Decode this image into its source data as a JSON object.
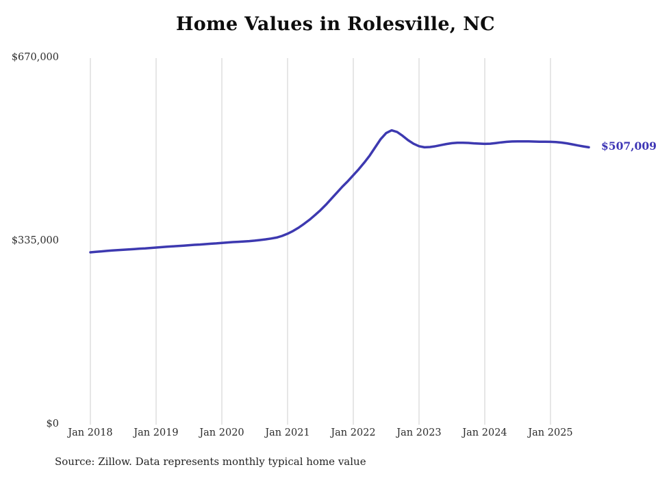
{
  "title": "Home Values in Rolesville, NC",
  "source_note": "Source: Zillow. Data represents monthly typical home value",
  "chart_data": {
    "type": "line",
    "title": "Home Values in Rolesville, NC",
    "xlabel": "",
    "ylabel": "",
    "ylim": [
      0,
      670000
    ],
    "grid": "vertical-only",
    "grid_color": "#cccccc",
    "line_color": "#3d39b0",
    "y_tick_labels": [
      "$670,000",
      "$335,000",
      "$0"
    ],
    "y_tick_values": [
      670000,
      335000,
      0
    ],
    "x_tick_labels": [
      "Jan 2018",
      "Jan 2019",
      "Jan 2020",
      "Jan 2021",
      "Jan 2022",
      "Jan 2023",
      "Jan 2024",
      "Jan 2025"
    ],
    "x_start": "2018-01",
    "x_interval": "monthly",
    "series": [
      {
        "name": "Monthly typical home value",
        "values": [
          315000,
          316000,
          316800,
          317600,
          318400,
          319000,
          319700,
          320400,
          321000,
          321700,
          322300,
          323000,
          323800,
          324500,
          325200,
          325900,
          326600,
          327300,
          328000,
          328700,
          329300,
          330000,
          330700,
          331400,
          332200,
          333000,
          333700,
          334300,
          334900,
          335500,
          336400,
          337500,
          338800,
          340300,
          342000,
          345000,
          349000,
          354000,
          360000,
          367000,
          374500,
          383000,
          392000,
          402000,
          413000,
          424000,
          435000,
          445000,
          456000,
          467000,
          479000,
          492000,
          507000,
          522000,
          533000,
          538000,
          535000,
          528000,
          520000,
          513500,
          509000,
          507000,
          507500,
          509000,
          511000,
          513000,
          514500,
          515200,
          515300,
          515000,
          514300,
          513700,
          513300,
          513600,
          514800,
          516000,
          517000,
          517600,
          517900,
          517900,
          517700,
          517500,
          517300,
          517100,
          517000,
          516500,
          515600,
          514200,
          512400,
          510400,
          508600,
          507009
        ]
      }
    ],
    "final_value": 507009,
    "final_value_label": "$507,009"
  }
}
